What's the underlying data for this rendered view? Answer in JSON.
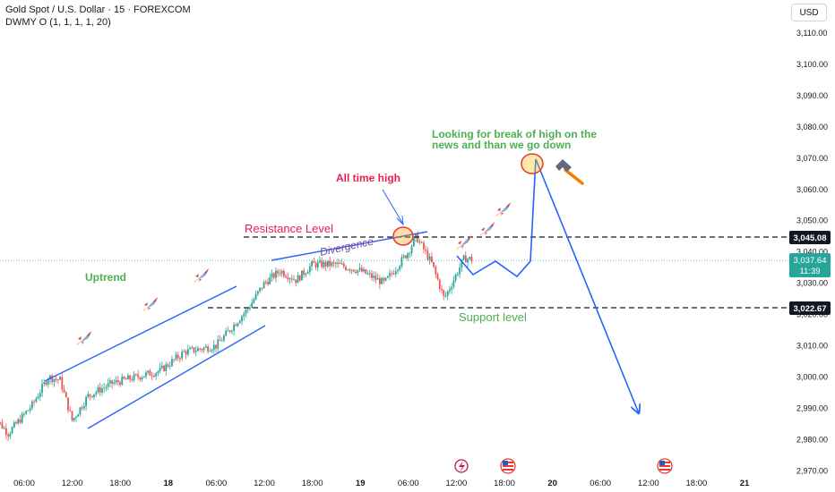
{
  "header": {
    "symbol_line": "Gold Spot / U.S. Dollar · 15 · FOREXCOM",
    "indicator_line": "DWMY O (1, 1, 1, 1, 20)",
    "currency": "USD"
  },
  "price_axis": {
    "ticks": [
      "3,110.00",
      "3,100.00",
      "3,090.00",
      "3,080.00",
      "3,070.00",
      "3,060.00",
      "3,050.00",
      "3,040.00",
      "3,030.00",
      "3,020.00",
      "3,010.00",
      "3,000.00",
      "2,990.00",
      "2,980.00",
      "2,970.00"
    ],
    "resistance_label": "3,045.08",
    "support_label": "3,022.67",
    "current_price": "3,037.64",
    "countdown": "11:39"
  },
  "time_axis": {
    "ticks": [
      "06:00",
      "12:00",
      "18:00",
      "18",
      "06:00",
      "12:00",
      "18:00",
      "19",
      "06:00",
      "12:00",
      "18:00",
      "20",
      "06:00",
      "12:00",
      "18:00",
      "21"
    ]
  },
  "annotations": {
    "uptrend": "Uptrend",
    "resistance": "Resistance Level",
    "divergence": "Divergence",
    "all_time_high": "All time high",
    "support": "Support level",
    "note_line1": "Looking for break of high on the",
    "note_line2": "news and than we go down"
  },
  "icons": [
    "rocket-icon",
    "hammer-icon",
    "lightning-event-icon",
    "us-flag-event-icon"
  ],
  "colors": {
    "up_candle": "#26a69a",
    "down_candle": "#ef5350",
    "projection": "#2962ff",
    "annotation_green": "#4caf50",
    "annotation_red": "#e91e4e",
    "annotation_purple": "#6a4c93",
    "level_line": "#131722"
  },
  "chart_data": {
    "type": "candlestick",
    "title": "Gold Spot / U.S. Dollar · 15 · FOREXCOM",
    "ylabel": "",
    "xlabel": "",
    "ylim": [
      2970,
      3115
    ],
    "x_ticks": [
      "06:00",
      "12:00",
      "18:00",
      "18",
      "06:00",
      "12:00",
      "18:00",
      "19",
      "06:00",
      "12:00",
      "18:00",
      "20",
      "06:00",
      "12:00",
      "18:00",
      "21"
    ],
    "price_path": [
      {
        "t": "17 02:00",
        "price": 2988
      },
      {
        "t": "17 04:00",
        "price": 2982
      },
      {
        "t": "17 07:00",
        "price": 2991
      },
      {
        "t": "17 09:00",
        "price": 3000
      },
      {
        "t": "17 10:30",
        "price": 2999
      },
      {
        "t": "17 12:00",
        "price": 2986
      },
      {
        "t": "17 14:00",
        "price": 2994
      },
      {
        "t": "17 17:00",
        "price": 2998
      },
      {
        "t": "17 20:00",
        "price": 3000
      },
      {
        "t": "17 23:00",
        "price": 3002
      },
      {
        "t": "18 02:00",
        "price": 3008
      },
      {
        "t": "18 06:00",
        "price": 3010
      },
      {
        "t": "18 08:00",
        "price": 3016
      },
      {
        "t": "18 10:00",
        "price": 3022
      },
      {
        "t": "18 12:00",
        "price": 3030
      },
      {
        "t": "18 14:00",
        "price": 3034
      },
      {
        "t": "18 16:00",
        "price": 3031
      },
      {
        "t": "18 18:00",
        "price": 3036
      },
      {
        "t": "18 21:00",
        "price": 3036
      },
      {
        "t": "19 00:00",
        "price": 3034
      },
      {
        "t": "19 03:00",
        "price": 3030
      },
      {
        "t": "19 06:00",
        "price": 3040
      },
      {
        "t": "19 07:00",
        "price": 3045
      },
      {
        "t": "19 09:00",
        "price": 3036
      },
      {
        "t": "19 10:30",
        "price": 3025
      },
      {
        "t": "19 13:00",
        "price": 3038
      },
      {
        "t": "19 14:00",
        "price": 3037.64
      }
    ],
    "levels": [
      {
        "name": "Resistance Level",
        "price": 3045.08
      },
      {
        "name": "Support level",
        "price": 3022.67
      }
    ],
    "projection": [
      {
        "t": "19 14:00",
        "price": 3038
      },
      {
        "t": "19 15:30",
        "price": 3033
      },
      {
        "t": "19 17:30",
        "price": 3037
      },
      {
        "t": "19 19:30",
        "price": 3033
      },
      {
        "t": "19 21:00",
        "price": 3037
      },
      {
        "t": "19 22:00",
        "price": 3069
      },
      {
        "t": "20 12:30",
        "price": 2989
      }
    ]
  }
}
